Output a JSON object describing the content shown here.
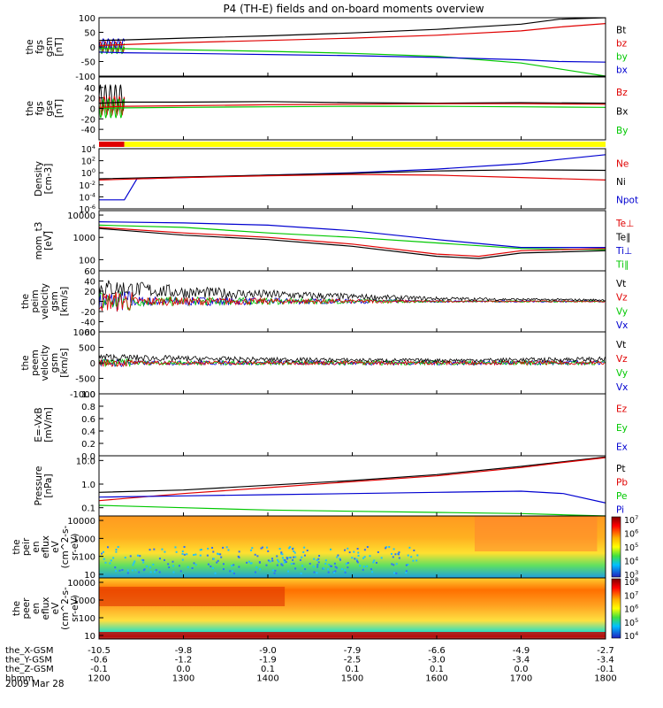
{
  "title": "P4 (TH-E) fields and on-board moments overview",
  "date_label": "2009 Mar 28",
  "colors": {
    "black": "#000000",
    "red": "#e00000",
    "green": "#00c800",
    "blue": "#0000d0",
    "yellow": "#ffff00",
    "orbit_red": "#e00000"
  },
  "chart_data": [
    {
      "id": "fgs_gsm",
      "type": "line",
      "ylabel": [
        "the",
        "fgs",
        "gsm",
        "[nT]"
      ],
      "ylim": [
        -100,
        100
      ],
      "yticks": [
        100,
        50,
        0,
        -50,
        -100
      ],
      "legend": [
        {
          "name": "Bt",
          "color": "#000000"
        },
        {
          "name": "bz",
          "color": "#e00000"
        },
        {
          "name": "by",
          "color": "#00c800"
        },
        {
          "name": "bx",
          "color": "#0000d0"
        }
      ],
      "series": [
        {
          "name": "Bt",
          "x": [
            1200,
            1230,
            1300,
            1400,
            1500,
            1600,
            1700,
            1745,
            1800
          ],
          "y": [
            22,
            24,
            30,
            38,
            48,
            60,
            78,
            95,
            100
          ]
        },
        {
          "name": "bz",
          "x": [
            1200,
            1230,
            1300,
            1400,
            1500,
            1600,
            1700,
            1745,
            1800
          ],
          "y": [
            5,
            8,
            15,
            22,
            30,
            40,
            55,
            68,
            80
          ]
        },
        {
          "name": "by",
          "x": [
            1200,
            1230,
            1300,
            1400,
            1500,
            1600,
            1700,
            1745,
            1800
          ],
          "y": [
            -5,
            -6,
            -10,
            -15,
            -22,
            -32,
            -55,
            -75,
            -100
          ]
        },
        {
          "name": "bx",
          "x": [
            1200,
            1230,
            1300,
            1400,
            1500,
            1600,
            1700,
            1745,
            1800
          ],
          "y": [
            -18,
            -20,
            -22,
            -26,
            -30,
            -36,
            -44,
            -50,
            -52
          ]
        }
      ]
    },
    {
      "id": "fgs_gse",
      "type": "line",
      "ylabel": [
        "the",
        "fgs",
        "gse",
        "[nT]"
      ],
      "ylim": [
        -60,
        60
      ],
      "yticks": [
        40,
        20,
        0,
        -20,
        -40
      ],
      "legend": [
        {
          "name": "Bz",
          "color": "#e00000"
        },
        {
          "name": "Bx",
          "color": "#000000"
        },
        {
          "name": "By",
          "color": "#00c800"
        }
      ],
      "series": [
        {
          "name": "Bx",
          "x": [
            1200,
            1230,
            1300,
            1400,
            1500,
            1600,
            1700,
            1800
          ],
          "y": [
            10,
            12,
            12,
            13,
            11,
            10,
            11,
            10
          ]
        },
        {
          "name": "Bz",
          "x": [
            1200,
            1230,
            1300,
            1400,
            1500,
            1600,
            1700,
            1800
          ],
          "y": [
            2,
            4,
            5,
            7,
            8,
            9,
            9,
            8
          ]
        },
        {
          "name": "By",
          "x": [
            1200,
            1230,
            1300,
            1400,
            1500,
            1600,
            1700,
            1800
          ],
          "y": [
            0,
            1,
            2,
            3,
            4,
            4,
            3,
            2
          ]
        }
      ]
    },
    {
      "id": "density",
      "type": "line",
      "ylabel": [
        "Density",
        "[cm-3]"
      ],
      "log": true,
      "ylim": [
        -6,
        4
      ],
      "ytick_exponents": [
        4,
        2,
        0,
        -2,
        -4,
        -6
      ],
      "legend": [
        {
          "name": "Ne",
          "color": "#e00000"
        },
        {
          "name": "Ni",
          "color": "#000000"
        },
        {
          "name": "Npot",
          "color": "#0000d0"
        }
      ],
      "series": [
        {
          "name": "Npot",
          "x": [
            1200,
            1230,
            1245,
            1300,
            1400,
            1500,
            1600,
            1700,
            1745,
            1800
          ],
          "y": [
            -4.5,
            -4.5,
            -1.0,
            -0.8,
            -0.4,
            0.0,
            0.6,
            1.5,
            2.2,
            3.0
          ]
        },
        {
          "name": "Ni",
          "x": [
            1200,
            1300,
            1400,
            1500,
            1600,
            1700,
            1800
          ],
          "y": [
            -1.0,
            -0.7,
            -0.4,
            -0.1,
            0.3,
            0.5,
            0.4
          ]
        },
        {
          "name": "Ne",
          "x": [
            1200,
            1300,
            1400,
            1500,
            1600,
            1700,
            1800
          ],
          "y": [
            -1.2,
            -0.8,
            -0.5,
            -0.3,
            -0.4,
            -0.8,
            -1.2
          ]
        }
      ]
    },
    {
      "id": "mom_t3",
      "type": "line",
      "ylabel": [
        "mom_t3",
        "[eV]"
      ],
      "log": true,
      "ylim": [
        1.5,
        4.2
      ],
      "yticks": [
        10000,
        1000,
        100
      ],
      "ytick_labels": [
        "10000",
        "1000",
        "100"
      ],
      "legend": [
        {
          "name": "Te⊥",
          "color": "#e00000"
        },
        {
          "name": "Te∥",
          "color": "#000000"
        },
        {
          "name": "Ti⊥",
          "color": "#0000d0"
        },
        {
          "name": "Ti∥",
          "color": "#00c800"
        }
      ],
      "series": [
        {
          "name": "Ti⊥",
          "x": [
            1200,
            1300,
            1400,
            1500,
            1600,
            1700,
            1800
          ],
          "y": [
            3.7,
            3.65,
            3.55,
            3.3,
            2.9,
            2.55,
            2.55
          ]
        },
        {
          "name": "Ti∥",
          "x": [
            1200,
            1300,
            1400,
            1500,
            1600,
            1700,
            1800
          ],
          "y": [
            3.55,
            3.45,
            3.2,
            3.0,
            2.75,
            2.5,
            2.45
          ]
        },
        {
          "name": "Te⊥",
          "x": [
            1200,
            1300,
            1400,
            1500,
            1600,
            1650,
            1700,
            1800
          ],
          "y": [
            3.45,
            3.2,
            3.0,
            2.7,
            2.25,
            2.15,
            2.4,
            2.5
          ]
        },
        {
          "name": "Te∥",
          "x": [
            1200,
            1300,
            1400,
            1500,
            1600,
            1650,
            1700,
            1800
          ],
          "y": [
            3.4,
            3.1,
            2.9,
            2.6,
            2.15,
            2.05,
            2.3,
            2.4
          ]
        }
      ]
    },
    {
      "id": "peim_velocity",
      "type": "line",
      "ylabel": [
        "the",
        "peim",
        "velocity",
        "gsm",
        "[km/s]"
      ],
      "ylim": [
        -60,
        60
      ],
      "yticks": [
        60,
        40,
        20,
        0,
        -20,
        -40,
        -60
      ],
      "legend": [
        {
          "name": "Vt",
          "color": "#000000"
        },
        {
          "name": "Vz",
          "color": "#e00000"
        },
        {
          "name": "Vy",
          "color": "#00c800"
        },
        {
          "name": "Vx",
          "color": "#0000d0"
        }
      ],
      "series": [
        {
          "name": "Vt",
          "x": [
            1200,
            1230,
            1300,
            1400,
            1500,
            1600,
            1700,
            1800
          ],
          "y": [
            30,
            28,
            20,
            15,
            10,
            6,
            4,
            3
          ]
        },
        {
          "name": "Vz",
          "x": [
            1200,
            1800
          ],
          "y": [
            0,
            0
          ]
        },
        {
          "name": "Vy",
          "x": [
            1200,
            1800
          ],
          "y": [
            0,
            0
          ]
        },
        {
          "name": "Vx",
          "x": [
            1200,
            1800
          ],
          "y": [
            0,
            0
          ]
        }
      ]
    },
    {
      "id": "peem_velocity",
      "type": "line",
      "ylabel": [
        "the",
        "peem",
        "velocity",
        "gsm",
        "[km/s]"
      ],
      "ylim": [
        -1000,
        1000
      ],
      "yticks": [
        1000,
        500,
        0,
        -500,
        -1000
      ],
      "legend": [
        {
          "name": "Vt",
          "color": "#000000"
        },
        {
          "name": "Vz",
          "color": "#e00000"
        },
        {
          "name": "Vy",
          "color": "#00c800"
        },
        {
          "name": "Vx",
          "color": "#0000d0"
        }
      ],
      "series": [
        {
          "name": "Vt",
          "x": [
            1200,
            1300,
            1400,
            1500,
            1600,
            1700,
            1800
          ],
          "y": [
            200,
            150,
            120,
            100,
            90,
            110,
            130
          ]
        },
        {
          "name": "Vz",
          "x": [
            1200,
            1800
          ],
          "y": [
            0,
            0
          ]
        },
        {
          "name": "Vy",
          "x": [
            1200,
            1800
          ],
          "y": [
            0,
            0
          ]
        },
        {
          "name": "Vx",
          "x": [
            1200,
            1800
          ],
          "y": [
            0,
            0
          ]
        }
      ]
    },
    {
      "id": "efield",
      "type": "line",
      "ylabel": [
        "E=-VxB",
        "[mV/m]"
      ],
      "ylim": [
        0,
        1
      ],
      "yticks": [
        1.0,
        0.8,
        0.6,
        0.4,
        0.2,
        0.0
      ],
      "ytick_labels": [
        "1.0",
        "0.8",
        "0.6",
        "0.4",
        "0.2",
        "0.0"
      ],
      "legend": [
        {
          "name": "Ez",
          "color": "#e00000"
        },
        {
          "name": "Ey",
          "color": "#00c800"
        },
        {
          "name": "Ex",
          "color": "#0000d0"
        }
      ],
      "series": []
    },
    {
      "id": "pressure",
      "type": "line",
      "ylabel": [
        "Pressure",
        "[nPa]"
      ],
      "log": true,
      "ylim": [
        -1.35,
        1.2
      ],
      "yticks": [
        10.0,
        1.0,
        0.1
      ],
      "ytick_labels": [
        "10.0",
        "1.0",
        "0.1"
      ],
      "legend": [
        {
          "name": "Pt",
          "color": "#000000"
        },
        {
          "name": "Pb",
          "color": "#e00000"
        },
        {
          "name": "Pe",
          "color": "#00c800"
        },
        {
          "name": "Pi",
          "color": "#0000d0"
        }
      ],
      "series": [
        {
          "name": "Pt",
          "x": [
            1200,
            1300,
            1400,
            1500,
            1600,
            1700,
            1750,
            1800
          ],
          "y": [
            -0.35,
            -0.25,
            -0.05,
            0.15,
            0.4,
            0.75,
            0.95,
            1.15
          ]
        },
        {
          "name": "Pb",
          "x": [
            1200,
            1300,
            1400,
            1500,
            1600,
            1700,
            1750,
            1800
          ],
          "y": [
            -0.7,
            -0.4,
            -0.15,
            0.1,
            0.35,
            0.7,
            0.92,
            1.12
          ]
        },
        {
          "name": "Pi",
          "x": [
            1200,
            1300,
            1400,
            1500,
            1600,
            1700,
            1750,
            1800
          ],
          "y": [
            -0.55,
            -0.5,
            -0.45,
            -0.4,
            -0.35,
            -0.3,
            -0.4,
            -0.8
          ]
        },
        {
          "name": "Pe",
          "x": [
            1200,
            1300,
            1400,
            1500,
            1600,
            1700,
            1750,
            1800
          ],
          "y": [
            -0.9,
            -1.0,
            -1.1,
            -1.15,
            -1.2,
            -1.25,
            -1.3,
            -1.35
          ]
        }
      ]
    },
    {
      "id": "peir_eflux",
      "type": "heatmap",
      "ylabel": [
        "the",
        "peir",
        "en",
        "eflux",
        "eV",
        "(cm^2-s-",
        "sr-eV)"
      ],
      "log": true,
      "ylim": [
        0.8,
        4.25
      ],
      "yticks": [
        10000,
        1000,
        100,
        10
      ],
      "ytick_labels": [
        "10000",
        "1000",
        "100",
        "10"
      ],
      "colorbar_exponents": [
        7,
        6,
        5,
        4,
        3
      ]
    },
    {
      "id": "peer_eflux",
      "type": "heatmap",
      "ylabel": [
        "the",
        "peer",
        "en",
        "eflux",
        "eV",
        "(cm^2-s-",
        "sr-eV)"
      ],
      "log": true,
      "ylim": [
        0.8,
        4.25
      ],
      "yticks": [
        10000,
        1000,
        100,
        10
      ],
      "ytick_labels": [
        "10000",
        "1000",
        "100",
        "10"
      ],
      "colorbar_exponents": [
        8,
        7,
        6,
        5,
        4
      ]
    }
  ],
  "orbit": {
    "row_labels": [
      "the_X-GSM",
      "the_Y-GSM",
      "the_Z-GSM",
      "hhmm"
    ],
    "columns": [
      {
        "x": 1200,
        "values": [
          "-10.5",
          "-0.6",
          "-0.1",
          "1200"
        ]
      },
      {
        "x": 1300,
        "values": [
          "-9.8",
          "-1.2",
          "0.0",
          "1300"
        ]
      },
      {
        "x": 1400,
        "values": [
          "-9.0",
          "-1.9",
          "0.1",
          "1400"
        ]
      },
      {
        "x": 1500,
        "values": [
          "-7.9",
          "-2.5",
          "0.1",
          "1500"
        ]
      },
      {
        "x": 1600,
        "values": [
          "-6.6",
          "-3.0",
          "0.1",
          "1600"
        ]
      },
      {
        "x": 1700,
        "values": [
          "-4.9",
          "-3.4",
          "0.0",
          "1700"
        ]
      },
      {
        "x": 1800,
        "values": [
          "-2.7",
          "-3.4",
          "-0.1",
          "1800"
        ]
      }
    ]
  },
  "mode_bar": {
    "red_until": 1230,
    "yellow_from": 1230
  }
}
